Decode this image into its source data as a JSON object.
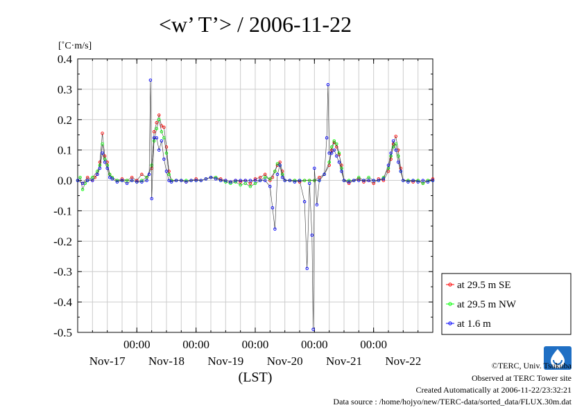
{
  "chart_data": {
    "type": "scatter",
    "title": "<w’ T’> / 2006-11-22",
    "ylabel": "[˚C·m/s]",
    "xlabel": "(LST)",
    "ylim": [
      -0.5,
      0.4
    ],
    "y_ticks": [
      0.4,
      0.3,
      0.2,
      0.1,
      0.0,
      -0.1,
      -0.2,
      -0.3,
      -0.4,
      -0.5
    ],
    "y_tick_labels": [
      "0.4",
      "0.3",
      "0.2",
      "0.1",
      "0.0",
      "-0.1",
      "-0.2",
      "-0.3",
      "-0.4",
      "-0.5"
    ],
    "x_unit": "hours from Nov-17 00:00",
    "xlim": [
      0,
      144
    ],
    "x_ticks": [
      24,
      48,
      72,
      96,
      120
    ],
    "x_tick_time_label": "00:00",
    "x_day_labels": [
      {
        "x": 12,
        "label": "Nov-17"
      },
      {
        "x": 36,
        "label": "Nov-18"
      },
      {
        "x": 60,
        "label": "Nov-19"
      },
      {
        "x": 84,
        "label": "Nov-20"
      },
      {
        "x": 108,
        "label": "Nov-21"
      },
      {
        "x": 132,
        "label": "Nov-22"
      }
    ],
    "grid": true,
    "legend_position": "right-bottom",
    "series": [
      {
        "name": "at 29.5 m SE",
        "color": "#ff0000",
        "points": [
          [
            0,
            0.0
          ],
          [
            2,
            -0.01
          ],
          [
            4,
            0.01
          ],
          [
            6,
            0.0
          ],
          [
            7,
            0.01
          ],
          [
            8,
            0.02
          ],
          [
            9,
            0.06
          ],
          [
            10,
            0.155
          ],
          [
            11,
            0.08
          ],
          [
            12,
            0.06
          ],
          [
            13,
            0.02
          ],
          [
            14,
            0.01
          ],
          [
            16,
            0.0
          ],
          [
            18,
            0.005
          ],
          [
            20,
            0.0
          ],
          [
            22,
            0.01
          ],
          [
            24,
            0.0
          ],
          [
            26,
            0.02
          ],
          [
            28,
            0.01
          ],
          [
            30,
            0.04
          ],
          [
            31,
            0.16
          ],
          [
            32,
            0.19
          ],
          [
            33,
            0.215
          ],
          [
            34,
            0.18
          ],
          [
            35,
            0.175
          ],
          [
            36,
            0.11
          ],
          [
            37,
            0.03
          ],
          [
            38,
            0.0
          ],
          [
            40,
            0.0
          ],
          [
            42,
            0.0
          ],
          [
            44,
            -0.005
          ],
          [
            46,
            0.0
          ],
          [
            48,
            0.005
          ],
          [
            50,
            0.0
          ],
          [
            52,
            0.005
          ],
          [
            54,
            0.01
          ],
          [
            56,
            0.01
          ],
          [
            58,
            0.005
          ],
          [
            60,
            0.0
          ],
          [
            62,
            -0.005
          ],
          [
            64,
            0.0
          ],
          [
            66,
            -0.005
          ],
          [
            68,
            0.0
          ],
          [
            70,
            -0.01
          ],
          [
            72,
            0.005
          ],
          [
            74,
            0.01
          ],
          [
            76,
            0.02
          ],
          [
            78,
            0.0
          ],
          [
            79,
            0.01
          ],
          [
            80,
            0.03
          ],
          [
            81,
            0.05
          ],
          [
            82,
            0.06
          ],
          [
            83,
            0.03
          ],
          [
            84,
            0.0
          ],
          [
            86,
            0.0
          ],
          [
            88,
            0.0
          ],
          [
            90,
            -0.005
          ],
          [
            92,
            0.0
          ],
          [
            94,
            0.0
          ],
          [
            96,
            0.0
          ],
          [
            98,
            0.01
          ],
          [
            100,
            0.02
          ],
          [
            102,
            0.05
          ],
          [
            103,
            0.1
          ],
          [
            104,
            0.125
          ],
          [
            105,
            0.11
          ],
          [
            106,
            0.085
          ],
          [
            107,
            0.05
          ],
          [
            108,
            0.0
          ],
          [
            110,
            -0.01
          ],
          [
            112,
            0.0
          ],
          [
            114,
            0.005
          ],
          [
            116,
            -0.005
          ],
          [
            118,
            0.0
          ],
          [
            120,
            -0.01
          ],
          [
            122,
            0.005
          ],
          [
            124,
            0.0
          ],
          [
            126,
            0.03
          ],
          [
            127,
            0.07
          ],
          [
            128,
            0.12
          ],
          [
            129,
            0.145
          ],
          [
            130,
            0.1
          ],
          [
            131,
            0.04
          ],
          [
            132,
            0.0
          ],
          [
            134,
            0.0
          ],
          [
            136,
            -0.005
          ],
          [
            138,
            0.0
          ],
          [
            140,
            -0.01
          ],
          [
            142,
            0.0
          ],
          [
            144,
            0.005
          ]
        ]
      },
      {
        "name": "at 29.5 m NW",
        "color": "#00ff00",
        "points": [
          [
            0,
            0.0
          ],
          [
            1,
            0.01
          ],
          [
            2,
            -0.03
          ],
          [
            3,
            -0.01
          ],
          [
            4,
            0.0
          ],
          [
            6,
            0.01
          ],
          [
            8,
            0.03
          ],
          [
            9,
            0.05
          ],
          [
            10,
            0.12
          ],
          [
            11,
            0.07
          ],
          [
            12,
            0.05
          ],
          [
            13,
            0.02
          ],
          [
            14,
            0.01
          ],
          [
            16,
            0.0
          ],
          [
            18,
            0.0
          ],
          [
            20,
            0.0
          ],
          [
            22,
            0.0
          ],
          [
            24,
            -0.005
          ],
          [
            26,
            0.0
          ],
          [
            28,
            0.01
          ],
          [
            30,
            0.05
          ],
          [
            31,
            0.13
          ],
          [
            32,
            0.17
          ],
          [
            33,
            0.2
          ],
          [
            34,
            0.16
          ],
          [
            35,
            0.14
          ],
          [
            36,
            0.09
          ],
          [
            37,
            0.02
          ],
          [
            38,
            0.0
          ],
          [
            40,
            0.0
          ],
          [
            42,
            0.0
          ],
          [
            44,
            0.0
          ],
          [
            46,
            0.0
          ],
          [
            48,
            0.0
          ],
          [
            50,
            0.0
          ],
          [
            52,
            0.005
          ],
          [
            54,
            0.01
          ],
          [
            56,
            0.01
          ],
          [
            58,
            0.0
          ],
          [
            60,
            -0.005
          ],
          [
            62,
            -0.01
          ],
          [
            64,
            -0.005
          ],
          [
            66,
            -0.015
          ],
          [
            68,
            -0.01
          ],
          [
            70,
            -0.02
          ],
          [
            72,
            -0.01
          ],
          [
            74,
            0.0
          ],
          [
            76,
            0.01
          ],
          [
            78,
            0.005
          ],
          [
            80,
            0.03
          ],
          [
            81,
            0.055
          ],
          [
            82,
            0.05
          ],
          [
            83,
            0.02
          ],
          [
            84,
            0.0
          ],
          [
            86,
            0.0
          ],
          [
            88,
            0.0
          ],
          [
            90,
            0.0
          ],
          [
            92,
            0.0
          ],
          [
            94,
            0.0
          ],
          [
            96,
            0.0
          ],
          [
            98,
            0.0
          ],
          [
            100,
            0.02
          ],
          [
            102,
            0.06
          ],
          [
            103,
            0.11
          ],
          [
            104,
            0.13
          ],
          [
            105,
            0.12
          ],
          [
            106,
            0.09
          ],
          [
            107,
            0.04
          ],
          [
            108,
            0.0
          ],
          [
            110,
            0.0
          ],
          [
            112,
            0.0
          ],
          [
            114,
            0.01
          ],
          [
            116,
            0.0
          ],
          [
            118,
            0.01
          ],
          [
            120,
            0.0
          ],
          [
            122,
            0.0
          ],
          [
            124,
            0.01
          ],
          [
            126,
            0.04
          ],
          [
            127,
            0.08
          ],
          [
            128,
            0.11
          ],
          [
            129,
            0.12
          ],
          [
            130,
            0.08
          ],
          [
            131,
            0.03
          ],
          [
            132,
            0.0
          ],
          [
            134,
            0.0
          ],
          [
            136,
            0.0
          ],
          [
            138,
            0.0
          ],
          [
            140,
            -0.01
          ],
          [
            142,
            0.0
          ],
          [
            144,
            0.0
          ]
        ]
      },
      {
        "name": "at 1.6 m",
        "color": "#0000ff",
        "points": [
          [
            0,
            0.0
          ],
          [
            2,
            -0.01
          ],
          [
            4,
            0.0
          ],
          [
            6,
            0.0
          ],
          [
            8,
            0.02
          ],
          [
            9,
            0.04
          ],
          [
            10,
            0.09
          ],
          [
            11,
            0.06
          ],
          [
            12,
            0.04
          ],
          [
            13,
            0.01
          ],
          [
            14,
            0.005
          ],
          [
            16,
            -0.005
          ],
          [
            18,
            0.0
          ],
          [
            20,
            -0.01
          ],
          [
            22,
            0.0
          ],
          [
            24,
            -0.005
          ],
          [
            26,
            -0.005
          ],
          [
            28,
            0.0
          ],
          [
            29,
            0.02
          ],
          [
            29.5,
            0.33
          ],
          [
            30,
            -0.06
          ],
          [
            31,
            0.14
          ],
          [
            32,
            0.14
          ],
          [
            33,
            0.1
          ],
          [
            34,
            0.13
          ],
          [
            35,
            0.07
          ],
          [
            36,
            0.03
          ],
          [
            37,
            0.0
          ],
          [
            38,
            -0.005
          ],
          [
            40,
            0.0
          ],
          [
            42,
            0.0
          ],
          [
            44,
            -0.005
          ],
          [
            46,
            0.0
          ],
          [
            48,
            0.0
          ],
          [
            50,
            0.0
          ],
          [
            52,
            0.005
          ],
          [
            54,
            0.01
          ],
          [
            56,
            0.005
          ],
          [
            58,
            0.0
          ],
          [
            60,
            0.0
          ],
          [
            62,
            -0.005
          ],
          [
            64,
            0.0
          ],
          [
            66,
            0.0
          ],
          [
            68,
            0.0
          ],
          [
            70,
            0.0
          ],
          [
            72,
            0.0
          ],
          [
            74,
            0.0
          ],
          [
            76,
            0.0
          ],
          [
            78,
            -0.02
          ],
          [
            79,
            -0.09
          ],
          [
            80,
            -0.16
          ],
          [
            81,
            0.02
          ],
          [
            82,
            0.05
          ],
          [
            83,
            0.01
          ],
          [
            84,
            0.0
          ],
          [
            86,
            0.0
          ],
          [
            88,
            -0.005
          ],
          [
            90,
            0.0
          ],
          [
            92,
            -0.07
          ],
          [
            93,
            -0.29
          ],
          [
            94,
            -0.01
          ],
          [
            95,
            -0.18
          ],
          [
            95.5,
            -0.49
          ],
          [
            96,
            0.04
          ],
          [
            97,
            -0.08
          ],
          [
            98,
            0.0
          ],
          [
            100,
            0.02
          ],
          [
            101,
            0.14
          ],
          [
            101.5,
            0.315
          ],
          [
            102,
            0.09
          ],
          [
            103,
            0.09
          ],
          [
            104,
            0.1
          ],
          [
            105,
            0.08
          ],
          [
            106,
            0.06
          ],
          [
            107,
            0.03
          ],
          [
            108,
            0.0
          ],
          [
            110,
            -0.005
          ],
          [
            112,
            0.0
          ],
          [
            114,
            0.0
          ],
          [
            116,
            0.0
          ],
          [
            118,
            0.0
          ],
          [
            120,
            0.0
          ],
          [
            122,
            0.0
          ],
          [
            124,
            0.005
          ],
          [
            126,
            0.05
          ],
          [
            127,
            0.09
          ],
          [
            128,
            0.13
          ],
          [
            129,
            0.1
          ],
          [
            130,
            0.06
          ],
          [
            131,
            0.03
          ],
          [
            132,
            0.0
          ],
          [
            134,
            -0.005
          ],
          [
            136,
            0.0
          ],
          [
            138,
            -0.005
          ],
          [
            140,
            0.0
          ],
          [
            142,
            -0.005
          ],
          [
            144,
            0.0
          ]
        ]
      }
    ]
  },
  "credits": {
    "copyright": "©TERC, Univ. Tsukuba",
    "observed": "Observed at TERC Tower site",
    "created": "Created Automatically at 2006-11-22/23:32:21",
    "source": "Data source : /home/hojyo/new/TERC-data/sorted_data/FLUX.30m.dat",
    "logo_text": "TERC"
  }
}
